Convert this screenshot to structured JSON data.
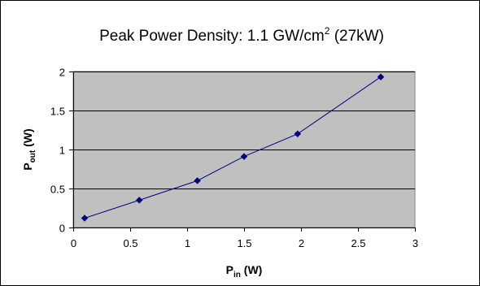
{
  "chart_data": {
    "type": "line",
    "title": {
      "main": "Peak Power Density: 1.1 GW/cm",
      "superscript": "2",
      "suffix": " (27kW)"
    },
    "xlabel": {
      "main": "P",
      "subscript": "in",
      "suffix": " (W)"
    },
    "ylabel": {
      "main": "P",
      "subscript": "out",
      "suffix": " (W)"
    },
    "xlim": [
      0,
      3
    ],
    "ylim": [
      0,
      2
    ],
    "xticks": [
      0,
      0.5,
      1,
      1.5,
      2,
      2.5,
      3
    ],
    "yticks": [
      0,
      0.5,
      1,
      1.5,
      2
    ],
    "xtick_labels": [
      "0",
      "0.5",
      "1",
      "1.5",
      "2",
      "2.5",
      "3"
    ],
    "ytick_labels": [
      "0",
      "0.5",
      "1",
      "1.5",
      "2"
    ],
    "grid": "horizontal",
    "series": [
      {
        "x": [
          0.1,
          0.58,
          1.09,
          1.5,
          1.97,
          2.7
        ],
        "y": [
          0.12,
          0.35,
          0.6,
          0.91,
          1.2,
          1.93
        ]
      }
    ],
    "colors": {
      "plot_background": "#c0c0c0",
      "line": "#000080",
      "marker": "#000080",
      "grid": "#000000",
      "frame": "#000000"
    }
  }
}
